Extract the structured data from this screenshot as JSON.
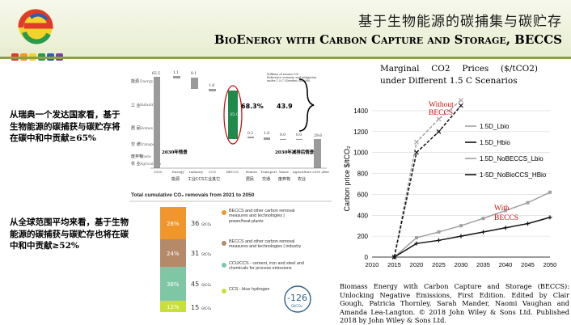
{
  "slide": {
    "title_cn": "基于生物能源的碳捕集与碳贮存",
    "title_en": "BioEnergy with Carbon Capture and Storage, BECCS",
    "logo": {
      "icon": "logo-e-icon",
      "badges": [
        "badge-1",
        "badge-2",
        "badge-3",
        "badge-4",
        "badge-5",
        "badge-6"
      ]
    }
  },
  "notes": {
    "sweden": "从瑞典一个发达国家看，基于生物能源的碳捕获与碳贮存将在碳中和中贡献≥65%",
    "global": "从全球范围平均来看，基于生物能源的碳捕获与碳贮存也将在碳中和中贡献≥52%"
  },
  "waterfall": {
    "legend": "Millions of tonnes CO₂\nReference scenario and mitigation\nunder 1.5 C (Sweden) in 2050",
    "rows": [
      "能源",
      "工业",
      "居民",
      "交通",
      "废弃物农业"
    ],
    "row_en": [
      "Energy",
      "Industry",
      "Homes",
      "Transport",
      "Waste",
      "Agriculture"
    ],
    "top_values": [
      "65.5",
      "1.1",
      "8.1",
      "1.8",
      "",
      "",
      "",
      "",
      "",
      ""
    ],
    "bottom_values": [
      "0.2",
      "1.8",
      "0.0",
      "0.0"
    ],
    "beccs_value": "35.0",
    "total_left": "2030",
    "total_right": "29.6",
    "pct": "68.3%",
    "brace_value": "43.9",
    "cap_2030": "2030年情景",
    "cap_2050": "2030年减排后情景",
    "axis_labels": [
      "2030",
      "Energy",
      "Industry",
      "CCS",
      "BECCS",
      "Homes",
      "Transport",
      "Waste",
      "Agriculture",
      "2050 after"
    ],
    "axis_cn": [
      "能源",
      "工业CCS工业其它",
      "居民",
      "交通",
      "废弃物",
      "农业"
    ]
  },
  "removals": {
    "title": "Total cumulative CO₂ removals from 2021 to 2050",
    "bars": [
      {
        "pct": "28%",
        "value": "36",
        "unit": "GtCO₂",
        "label": "BECCS and other carbon removal measures and technologies | power/heat plants",
        "color": "#f0962d"
      },
      {
        "pct": "24%",
        "value": "31",
        "unit": "GtCO₂",
        "label": "BECCS and other carbon removal measures and technologies | industry",
        "color": "#b48a68"
      },
      {
        "pct": "36%",
        "value": "45",
        "unit": "GtCO₂",
        "label": "CCU/CCS - cement, iron and steel and chemicals for process emissions",
        "color": "#7fc6a4"
      },
      {
        "pct": "12%",
        "value": "15",
        "unit": "GtCO₂",
        "label": "CCS - blue hydrogen",
        "color": "#c9df3a"
      }
    ],
    "total": "-126",
    "total_unit": "GtCO₂"
  },
  "chart_data": {
    "type": "line",
    "title": "Marginal  CO2  Prices  ($/tCO2) under Different 1.5 C Scenarios",
    "ylabel": "Carbon price $/tCO₂",
    "xlabel": "",
    "x": [
      2010,
      2015,
      2020,
      2025,
      2030,
      2035,
      2040,
      2045,
      2050
    ],
    "ylim": [
      0,
      1500
    ],
    "yticks": [
      0,
      200,
      400,
      600,
      800,
      1000,
      1200,
      1400
    ],
    "legend_position": "right",
    "grid": true,
    "series": [
      {
        "name": "1.5D_Lbio",
        "x": [
          2015,
          2020,
          2025,
          2030,
          2035,
          2040,
          2045,
          2050
        ],
        "values": [
          0,
          185,
          240,
          300,
          370,
          445,
          520,
          620
        ],
        "color": "#a0a0a0",
        "marker": "square"
      },
      {
        "name": "1.5D_Hbio",
        "x": [
          2015,
          2020,
          2025,
          2030,
          2035,
          2040,
          2045,
          2050
        ],
        "values": [
          0,
          130,
          160,
          200,
          240,
          280,
          320,
          380
        ],
        "color": "#111111",
        "marker": "cross"
      },
      {
        "name": "1.5D_NoBECCS_Lbio",
        "x": [
          2015,
          2020,
          2025,
          2030
        ],
        "values": [
          0,
          1100,
          1320,
          1500
        ],
        "color": "#a0a0a0",
        "marker": "x"
      },
      {
        "name": "1-5D_NoBioCCS_HBio",
        "x": [
          2015,
          2020,
          2025,
          2030
        ],
        "values": [
          0,
          1000,
          1200,
          1450
        ],
        "color": "#111111",
        "marker": "x"
      }
    ],
    "annotations": [
      {
        "text": "Without\nBECCS",
        "color": "#d01010"
      },
      {
        "text": "With\nBECCS",
        "color": "#d01010"
      }
    ]
  },
  "source": "Biomass Energy with Carbon Capture and Storage (BECCS): Unlocking Negative Emissions, First Edition. Edited by Clair Gough, Patricia Thornley, Sarah Mander, Naomi Vaughan and Amanda Lea-Langton. © 2018 John Wiley & Sons Ltd. Published 2018 by John Wiley & Sons Ltd.",
  "colors": {
    "accent": "#8aa14a",
    "red": "#d01010",
    "beccs_bar": "#1f8a4c"
  }
}
